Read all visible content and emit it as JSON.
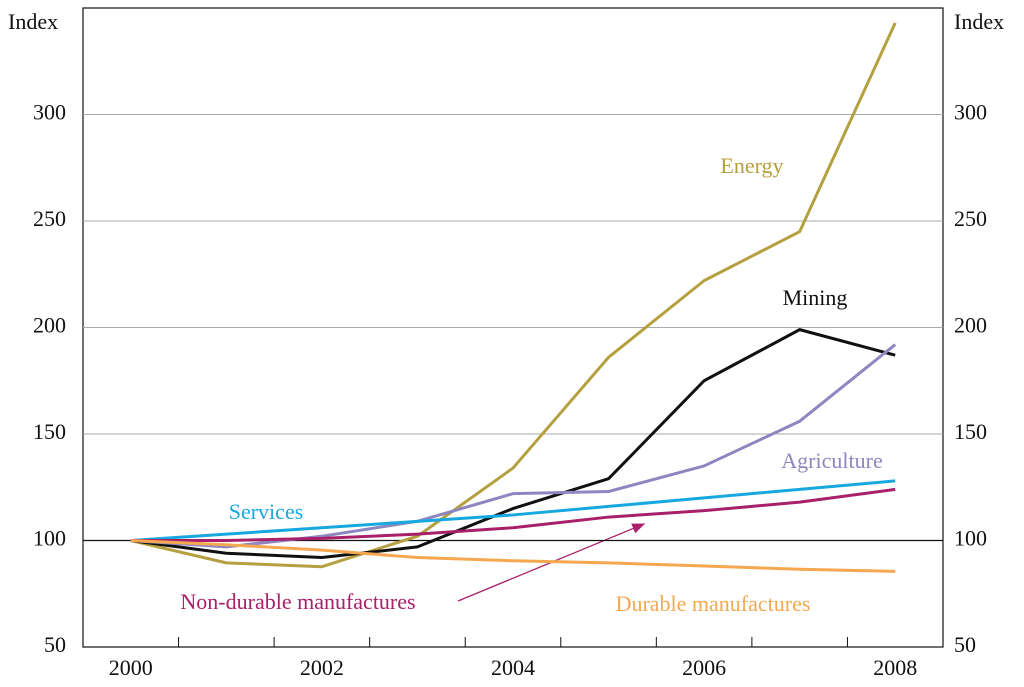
{
  "chart_data": {
    "type": "line",
    "yaxis_label": "Index",
    "y2axis_label": "Index",
    "x": [
      2000,
      2001,
      2002,
      2003,
      2004,
      2005,
      2006,
      2007,
      2008
    ],
    "xlim": [
      1999.5,
      2008.5
    ],
    "xticks": [
      2000,
      2002,
      2004,
      2006,
      2008
    ],
    "xminorticks": [
      2000.5,
      2001.5,
      2002.5,
      2003.5,
      2004.5,
      2005.5,
      2006.5,
      2007.5
    ],
    "ylim": [
      50,
      350
    ],
    "yticks": [
      50,
      100,
      150,
      200,
      250,
      300
    ],
    "y2lim": [
      50,
      350
    ],
    "y2ticks": [
      50,
      100,
      150,
      200,
      250,
      300
    ],
    "grid": true,
    "refline": 100,
    "series": [
      {
        "name": "Energy",
        "color": "#b5a040",
        "values": [
          100,
          89.5,
          87.7,
          102,
          134,
          186,
          222,
          245,
          343
        ]
      },
      {
        "name": "Mining",
        "color": "#111111",
        "values": [
          100,
          94,
          92,
          97,
          115,
          129,
          175,
          199,
          187
        ]
      },
      {
        "name": "Agriculture",
        "color": "#8e86c0",
        "values": [
          100,
          97,
          102,
          109,
          122,
          123,
          135,
          156,
          192
        ]
      },
      {
        "name": "Services",
        "color": "#18a8e0",
        "values": [
          100,
          103,
          106,
          109,
          112,
          116,
          120,
          124,
          128
        ]
      },
      {
        "name": "Non-durable manufactures",
        "color": "#a8206a",
        "values": [
          100,
          100,
          101,
          103,
          106,
          111,
          114,
          118,
          124
        ]
      },
      {
        "name": "Durable manufactures",
        "color": "#f5a850",
        "values": [
          100,
          98,
          95.5,
          92,
          90.5,
          89.5,
          88,
          86.5,
          85.5
        ]
      }
    ]
  }
}
